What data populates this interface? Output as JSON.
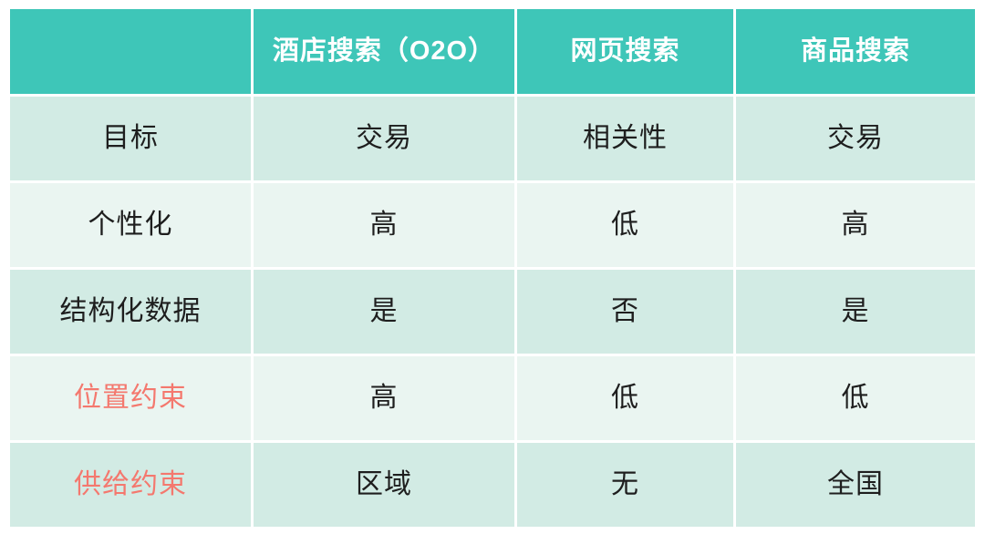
{
  "table": {
    "columns": [
      "",
      "酒店搜索（O2O）",
      "网页搜索",
      "商品搜索"
    ],
    "rows": [
      {
        "label": "目标",
        "label_style": "dark",
        "values": [
          "交易",
          "相关性",
          "交易"
        ]
      },
      {
        "label": "个性化",
        "label_style": "dark",
        "values": [
          "高",
          "低",
          "高"
        ]
      },
      {
        "label": "结构化数据",
        "label_style": "dark",
        "values": [
          "是",
          "否",
          "是"
        ]
      },
      {
        "label": "位置约束",
        "label_style": "red",
        "values": [
          "高",
          "低",
          "低"
        ]
      },
      {
        "label": "供给约束",
        "label_style": "red",
        "values": [
          "区域",
          "无",
          "全国"
        ]
      }
    ],
    "colors": {
      "header_bg": "#3ec6b8",
      "header_text": "#ffffff",
      "row_bg_dark": "#d2ebe4",
      "row_bg_light": "#eaf5f1",
      "text": "#1e1e1e",
      "red_label": "#f4786e",
      "gap": "#ffffff"
    }
  }
}
